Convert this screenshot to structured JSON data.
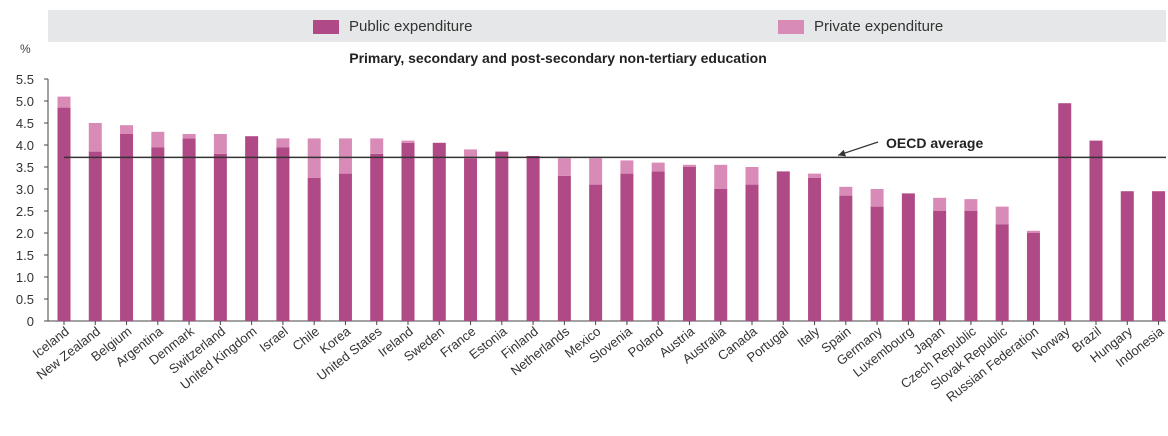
{
  "legend": {
    "public_label": "Public expenditure",
    "private_label": "Private expenditure"
  },
  "colors": {
    "public": "#b04a86",
    "private": "#d98bb8",
    "band": "#e6e7e8",
    "axis": "#444444",
    "average_line": "#333333"
  },
  "chart_data": {
    "type": "bar",
    "stacked": true,
    "title": "Primary, secondary and post-secondary non-tertiary education",
    "ylabel": "%",
    "ylim": [
      0,
      5.5
    ],
    "yticks": [
      "0",
      "0.5",
      "1.0",
      "1.5",
      "2.0",
      "2.5",
      "3.0",
      "3.5",
      "4.0",
      "4.5",
      "5.0",
      "5.5"
    ],
    "legend_position": "top",
    "categories": [
      "Iceland",
      "New Zealand",
      "Belgium",
      "Argentina",
      "Denmark",
      "Switzerland",
      "United Kingdom",
      "Israel",
      "Chile",
      "Korea",
      "United States",
      "Ireland",
      "Sweden",
      "France",
      "Estonia",
      "Finland",
      "Netherlands",
      "Mexico",
      "Slovenia",
      "Poland",
      "Austria",
      "Australia",
      "Canada",
      "Portugal",
      "Italy",
      "Spain",
      "Germany",
      "Luxembourg",
      "Japan",
      "Czech Republic",
      "Slovak Republic",
      "Russian Federation",
      "Norway",
      "Brazil",
      "Hungary",
      "Indonesia"
    ],
    "series": [
      {
        "name": "Public expenditure",
        "values": [
          4.85,
          3.85,
          4.25,
          3.95,
          4.15,
          3.8,
          4.2,
          3.95,
          3.25,
          3.35,
          3.8,
          4.05,
          4.05,
          3.7,
          3.85,
          3.75,
          3.3,
          3.1,
          3.35,
          3.4,
          3.5,
          3.0,
          3.1,
          3.4,
          3.25,
          2.85,
          2.6,
          2.9,
          2.5,
          2.5,
          2.2,
          2.0,
          4.95,
          4.1,
          2.95,
          2.95
        ]
      },
      {
        "name": "Private expenditure",
        "values": [
          0.25,
          0.65,
          0.2,
          0.35,
          0.1,
          0.45,
          0.0,
          0.2,
          0.9,
          0.8,
          0.35,
          0.05,
          0.0,
          0.2,
          0.0,
          0.0,
          0.4,
          0.6,
          0.3,
          0.2,
          0.05,
          0.55,
          0.4,
          0.0,
          0.1,
          0.2,
          0.4,
          0.0,
          0.3,
          0.27,
          0.4,
          0.05,
          0.0,
          0.0,
          0.0,
          0.0
        ]
      }
    ],
    "reference_line": {
      "label": "OECD average",
      "value": 3.72
    }
  }
}
